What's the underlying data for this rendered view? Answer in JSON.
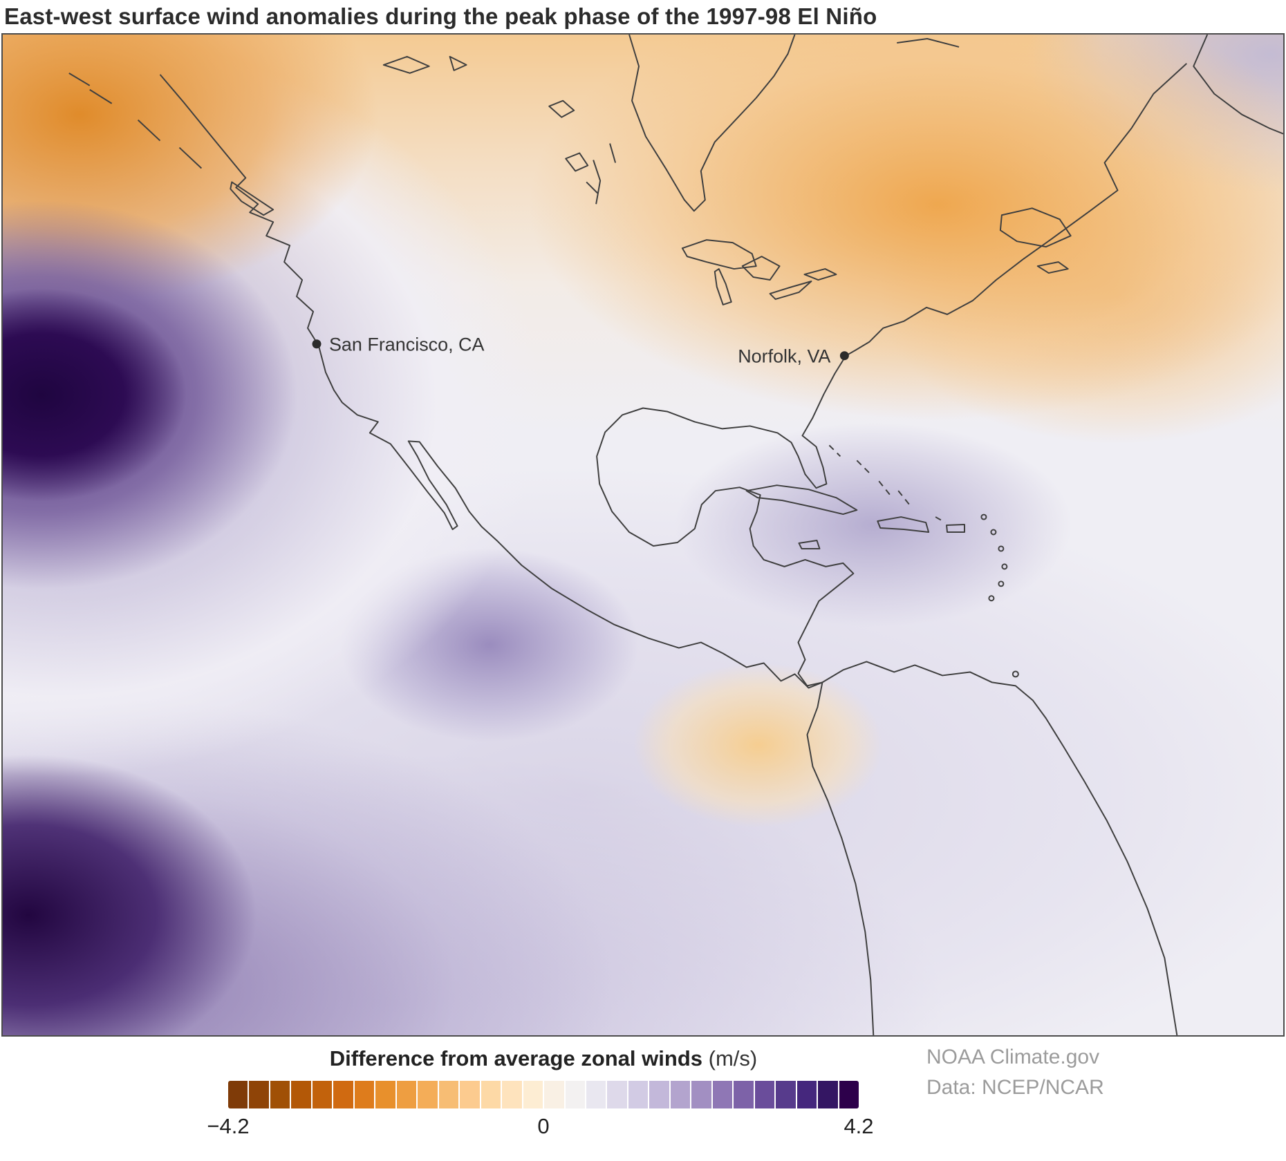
{
  "title": "East-west surface wind anomalies during the peak phase of the 1997-98 El Niño",
  "map": {
    "markers": [
      {
        "label": "San Francisco, CA"
      },
      {
        "label": "Norfolk, VA"
      }
    ],
    "field_summary": {
      "colormap": "orange = negative (easterly) anomalies, purple = positive (westerly) anomalies",
      "range_mps": [
        -4.2,
        4.2
      ],
      "features": [
        {
          "area": "North Pacific west of San Francisco",
          "anomaly": "strong positive, near +4.2 m/s (dark purple)"
        },
        {
          "area": "subtropical Pacific, bottom-left corner",
          "anomaly": "strong positive (dark purple)"
        },
        {
          "area": "Alaska, Canada, Great Lakes and northeastern U.S.",
          "anomaly": "moderate negative (orange)"
        },
        {
          "area": "Mexico, Gulf of Mexico and Caribbean",
          "anomaly": "weak positive (light purple)"
        },
        {
          "area": "eastern tropical Pacific south of Mexico",
          "anomaly": "moderate positive (purple)"
        },
        {
          "area": "northern South America",
          "anomaly": "weak negative (pale orange)"
        }
      ]
    }
  },
  "legend": {
    "title": "Difference from average zonal winds",
    "units": "(m/s)",
    "ticks": [
      "−4.2",
      "0",
      "4.2"
    ],
    "colorbar_colors": [
      "#7f3b08",
      "#8f4407",
      "#a05005",
      "#b35807",
      "#c2620c",
      "#d06a11",
      "#de7c1c",
      "#e8902c",
      "#ee9e41",
      "#f4ad58",
      "#f7bd74",
      "#fccb8f",
      "#fdd9a6",
      "#fee3bd",
      "#fdedd3",
      "#f9f0e4",
      "#f3f1f1",
      "#e9e7f0",
      "#ded9ea",
      "#d2cbe4",
      "#c3b8da",
      "#b3a4ce",
      "#a28fc2",
      "#8f77b5",
      "#7d62a8",
      "#6a4d9b",
      "#573b8c",
      "#45277d",
      "#341663",
      "#2d004b"
    ]
  },
  "credits": {
    "line1": "NOAA Climate.gov",
    "line2": "Data: NCEP/NCAR"
  },
  "colors": {
    "negative_orange": "#e08214",
    "positive_purple": "#2d004b",
    "coastline": "#3f3f3f",
    "map_border": "#4c4c4c"
  }
}
